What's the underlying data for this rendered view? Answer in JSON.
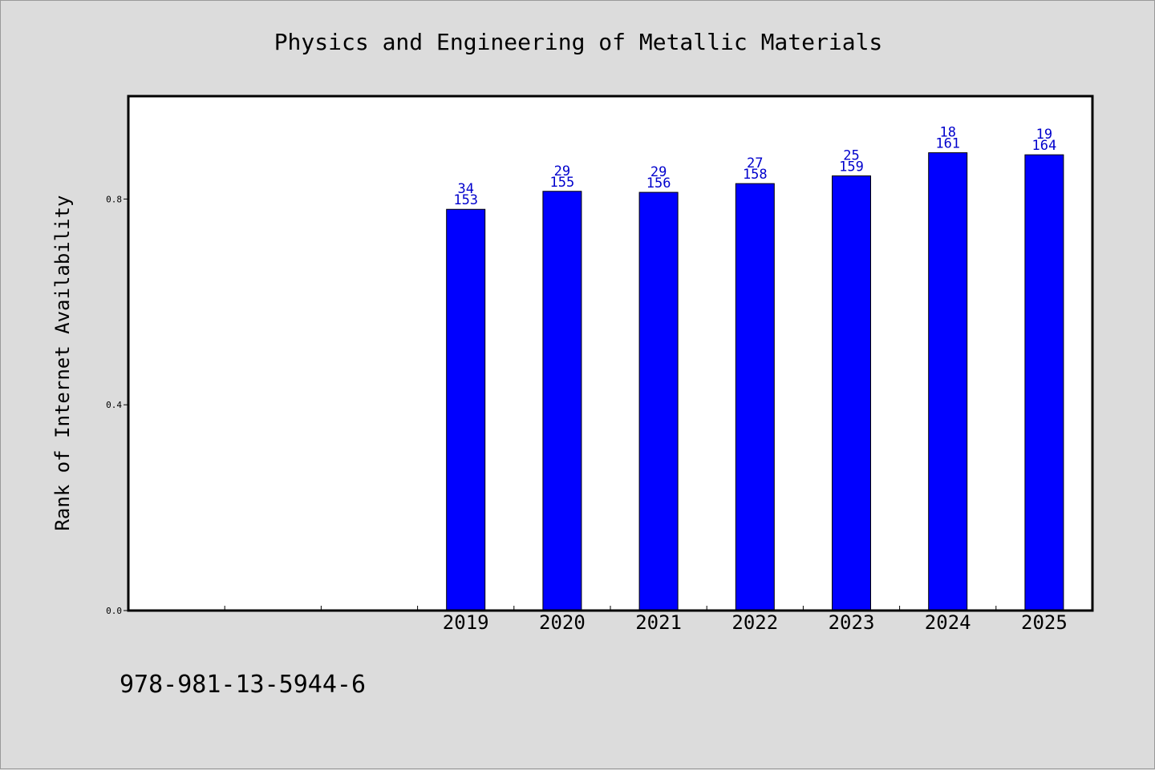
{
  "chart_data": {
    "type": "bar",
    "title": "Physics and Engineering of Metallic Materials",
    "xlabel": "",
    "ylabel": "Rank of Internet Availability",
    "categories": [
      "",
      "",
      "",
      "2019",
      "2020",
      "2021",
      "2022",
      "2023",
      "2024",
      "2025"
    ],
    "values": [
      null,
      null,
      null,
      0.78,
      0.815,
      0.813,
      0.83,
      0.845,
      0.89,
      0.886
    ],
    "data_labels": [
      null,
      null,
      null,
      [
        "34",
        "153"
      ],
      [
        "29",
        "155"
      ],
      [
        "29",
        "156"
      ],
      [
        "27",
        "158"
      ],
      [
        "25",
        "159"
      ],
      [
        "18",
        "161"
      ],
      [
        "19",
        "164"
      ]
    ],
    "ylim": [
      0.0,
      1.0
    ],
    "yticks": [
      0.0,
      0.4,
      0.8
    ],
    "ytick_labels": [
      "0.0",
      "0.4",
      "0.8"
    ],
    "grid": false,
    "colors": {
      "bar": "#0000ff",
      "data_label": "#0000cc",
      "plot_background": "#ffffff",
      "page_background": "#dcdcdc"
    }
  },
  "footer": {
    "isbn": "978-981-13-5944-6"
  }
}
